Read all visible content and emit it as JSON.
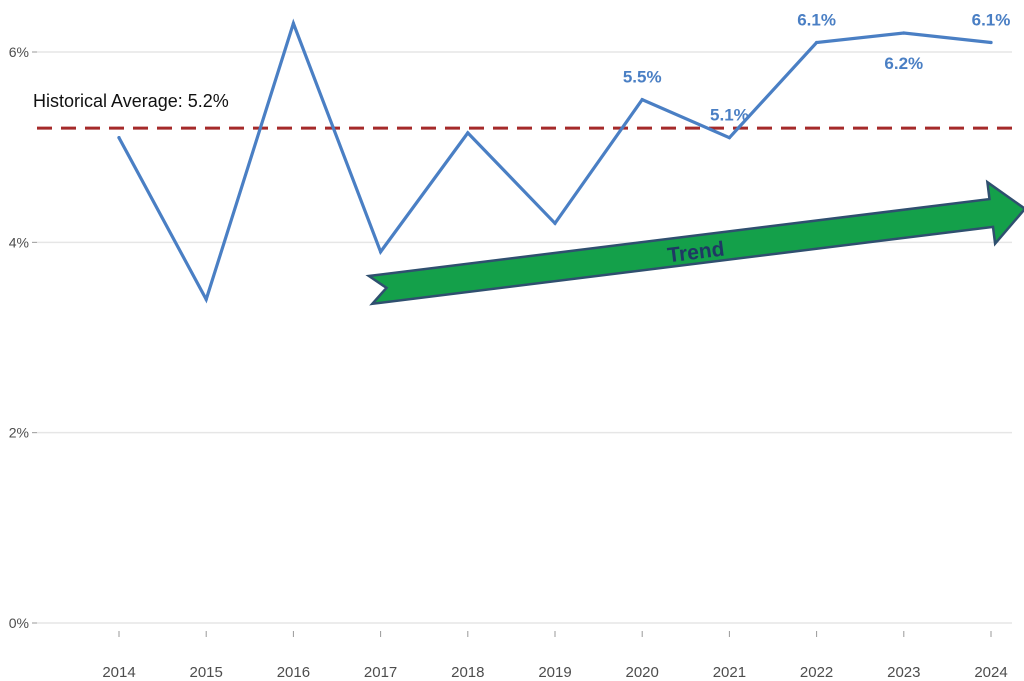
{
  "chart_data": {
    "type": "line",
    "x": [
      "2014",
      "2015",
      "2016",
      "2017",
      "2018",
      "2019",
      "2020",
      "2021",
      "2022",
      "2023",
      "2024"
    ],
    "series": [
      {
        "values": [
          5.1,
          3.4,
          6.3,
          3.9,
          5.15,
          4.2,
          5.5,
          5.1,
          6.1,
          6.2,
          6.1
        ]
      }
    ],
    "ylim": [
      0,
      6.3
    ],
    "yticks": [
      0,
      2,
      4,
      6
    ],
    "ytick_labels": [
      "0%",
      "2%",
      "4%",
      "6%"
    ],
    "xlabel": "",
    "ylabel": "",
    "grid": "horizontal",
    "data_labels": [
      {
        "x": "2020",
        "text": "5.5%",
        "position": "above"
      },
      {
        "x": "2021",
        "text": "5.1%",
        "position": "above"
      },
      {
        "x": "2022",
        "text": "6.1%",
        "position": "above"
      },
      {
        "x": "2023",
        "text": "6.2%",
        "position": "below"
      },
      {
        "x": "2024",
        "text": "6.1%",
        "position": "above"
      }
    ],
    "reference_line": {
      "value": 5.2,
      "label": "Historical Average: 5.2%",
      "style": "dashed"
    },
    "annotation_arrow": {
      "label": "Trend",
      "from": {
        "x": "2017",
        "y": 3.5
      },
      "to": {
        "x": "2024",
        "y": 4.3
      }
    }
  },
  "colors": {
    "series": "#4a7fc4",
    "data_label": "#4a7fc4",
    "reference_line": "#a52a2a",
    "grid": "#e6e6e6",
    "arrow_fill": "#14a04a",
    "arrow_stroke": "#2f4f6f",
    "trend_text": "#1f3864"
  }
}
